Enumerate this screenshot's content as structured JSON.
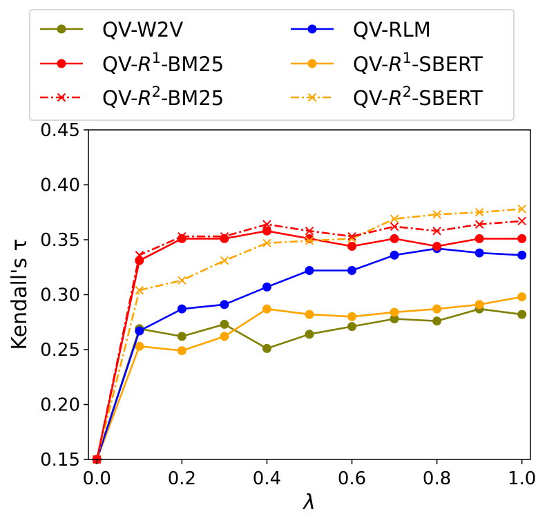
{
  "chart_data": {
    "type": "line",
    "title": "",
    "xlabel": "λ",
    "ylabel": "Kendall's τ",
    "xlim": [
      -0.02,
      1.02
    ],
    "ylim": [
      0.15,
      0.45
    ],
    "x": [
      0.0,
      0.1,
      0.2,
      0.3,
      0.4,
      0.5,
      0.6,
      0.7,
      0.8,
      0.9,
      1.0
    ],
    "xticks": [
      "0.0",
      "0.2",
      "0.4",
      "0.6",
      "0.8",
      "1.0"
    ],
    "xtick_values": [
      0.0,
      0.2,
      0.4,
      0.6,
      0.8,
      1.0
    ],
    "yticks": [
      "0.15",
      "0.20",
      "0.25",
      "0.30",
      "0.35",
      "0.40",
      "0.45"
    ],
    "ytick_values": [
      0.15,
      0.2,
      0.25,
      0.3,
      0.35,
      0.4,
      0.45
    ],
    "legend_position": "top, outside, 2 columns",
    "series": [
      {
        "name": "QV-W2V",
        "label_parts": {
          "pre": "QV-W2V",
          "italic": "",
          "sup": "",
          "post": ""
        },
        "color": "#808000",
        "marker": "circle",
        "linestyle": "solid",
        "values": [
          0.15,
          0.269,
          0.262,
          0.273,
          0.251,
          0.264,
          0.271,
          0.278,
          0.276,
          0.287,
          0.282
        ]
      },
      {
        "name": "QV-RLM",
        "label_parts": {
          "pre": "QV-RLM",
          "italic": "",
          "sup": "",
          "post": ""
        },
        "color": "#0000ff",
        "marker": "circle",
        "linestyle": "solid",
        "values": [
          0.15,
          0.267,
          0.287,
          0.291,
          0.307,
          0.322,
          0.322,
          0.336,
          0.342,
          0.338,
          0.336
        ]
      },
      {
        "name": "QV-R1-BM25",
        "label_parts": {
          "pre": "QV-",
          "italic": "R",
          "sup": "1",
          "post": "-BM25"
        },
        "color": "#ff0000",
        "marker": "circle",
        "linestyle": "solid",
        "values": [
          0.15,
          0.331,
          0.351,
          0.351,
          0.358,
          0.351,
          0.344,
          0.351,
          0.344,
          0.351,
          0.351
        ]
      },
      {
        "name": "QV-R1-SBERT",
        "label_parts": {
          "pre": "QV-",
          "italic": "R",
          "sup": "1",
          "post": "-SBERT"
        },
        "color": "#ffa500",
        "marker": "circle",
        "linestyle": "solid",
        "values": [
          0.15,
          0.253,
          0.249,
          0.262,
          0.287,
          0.282,
          0.28,
          0.284,
          0.287,
          0.291,
          0.298
        ]
      },
      {
        "name": "QV-R2-BM25",
        "label_parts": {
          "pre": "QV-",
          "italic": "R",
          "sup": "2",
          "post": "-BM25"
        },
        "color": "#ff0000",
        "marker": "x",
        "linestyle": "dashdot",
        "values": [
          0.15,
          0.336,
          0.353,
          0.353,
          0.364,
          0.358,
          0.353,
          0.362,
          0.358,
          0.364,
          0.367
        ]
      },
      {
        "name": "QV-R2-SBERT",
        "label_parts": {
          "pre": "QV-",
          "italic": "R",
          "sup": "2",
          "post": "-SBERT"
        },
        "color": "#ffa500",
        "marker": "x",
        "linestyle": "dashdot",
        "values": [
          0.15,
          0.304,
          0.313,
          0.331,
          0.347,
          0.349,
          0.351,
          0.369,
          0.373,
          0.375,
          0.378
        ]
      }
    ]
  }
}
